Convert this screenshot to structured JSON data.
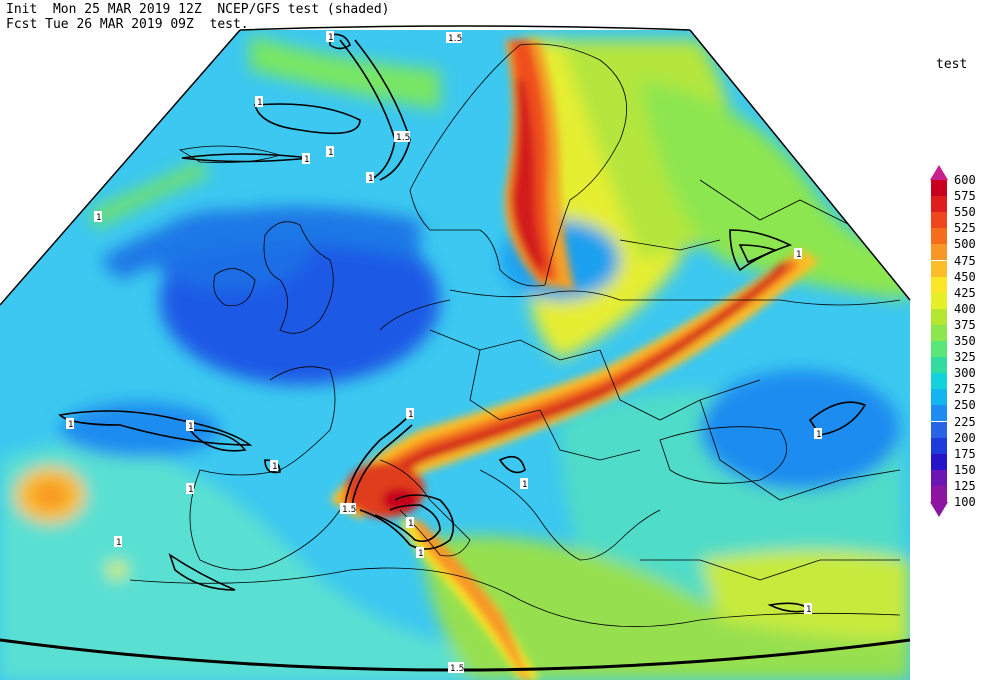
{
  "header": {
    "init_line": "Init  Mon 25 MAR 2019 12Z  NCEP/GFS test (shaded)",
    "fcst_line": "Fcst Tue 26 MAR 2019 09Z  test."
  },
  "legend": {
    "title": "test",
    "levels": [
      "600",
      "575",
      "550",
      "525",
      "500",
      "475",
      "450",
      "425",
      "400",
      "375",
      "350",
      "325",
      "300",
      "275",
      "250",
      "225",
      "200",
      "175",
      "150",
      "125",
      "100"
    ],
    "colors": [
      "#b00080",
      "#c8001e",
      "#de1e1e",
      "#f0461e",
      "#f46e1e",
      "#f89628",
      "#fcbe28",
      "#fce628",
      "#e6f028",
      "#b4e632",
      "#8ce650",
      "#5ae678",
      "#32dca0",
      "#14d2dc",
      "#14b4f0",
      "#1e8cf0",
      "#2864e6",
      "#1e3cdc",
      "#2814c8",
      "#6e14b4",
      "#8c14a0"
    ],
    "top_arrow_color": "#c8208c",
    "bottom_arrow_color": "#8c14a0"
  },
  "map": {
    "contour_labels": [
      "1.5",
      "1",
      "1",
      "1",
      "1",
      "1.5",
      "1",
      "1",
      "1",
      "1",
      "1",
      "1",
      "1",
      "1",
      "1",
      "1",
      "1.5",
      "1",
      "1",
      "1",
      "1",
      "1.5"
    ]
  }
}
